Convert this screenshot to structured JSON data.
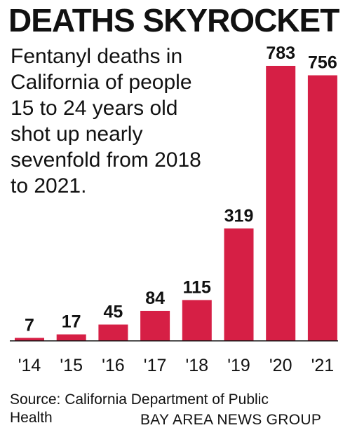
{
  "chart_data": {
    "type": "bar",
    "title": "DEATHS SKYROCKET",
    "subtitle": "Fentanyl deaths in California of people 15 to 24 years old shot up nearly sevenfold from 2018 to 2021.",
    "categories": [
      "'14",
      "'15",
      "'16",
      "'17",
      "'18",
      "'19",
      "'20",
      "'21"
    ],
    "values": [
      7,
      17,
      45,
      84,
      115,
      319,
      783,
      756
    ],
    "data_labels": [
      "7",
      "17",
      "45",
      "84",
      "115",
      "319",
      "783",
      "756"
    ],
    "xlabel": "",
    "ylabel": "",
    "ylim": [
      0,
      783
    ],
    "grid": false,
    "bar_color": "#d61f45"
  },
  "source": "Source: California Department of Public Health",
  "credit": "BAY AREA NEWS GROUP"
}
